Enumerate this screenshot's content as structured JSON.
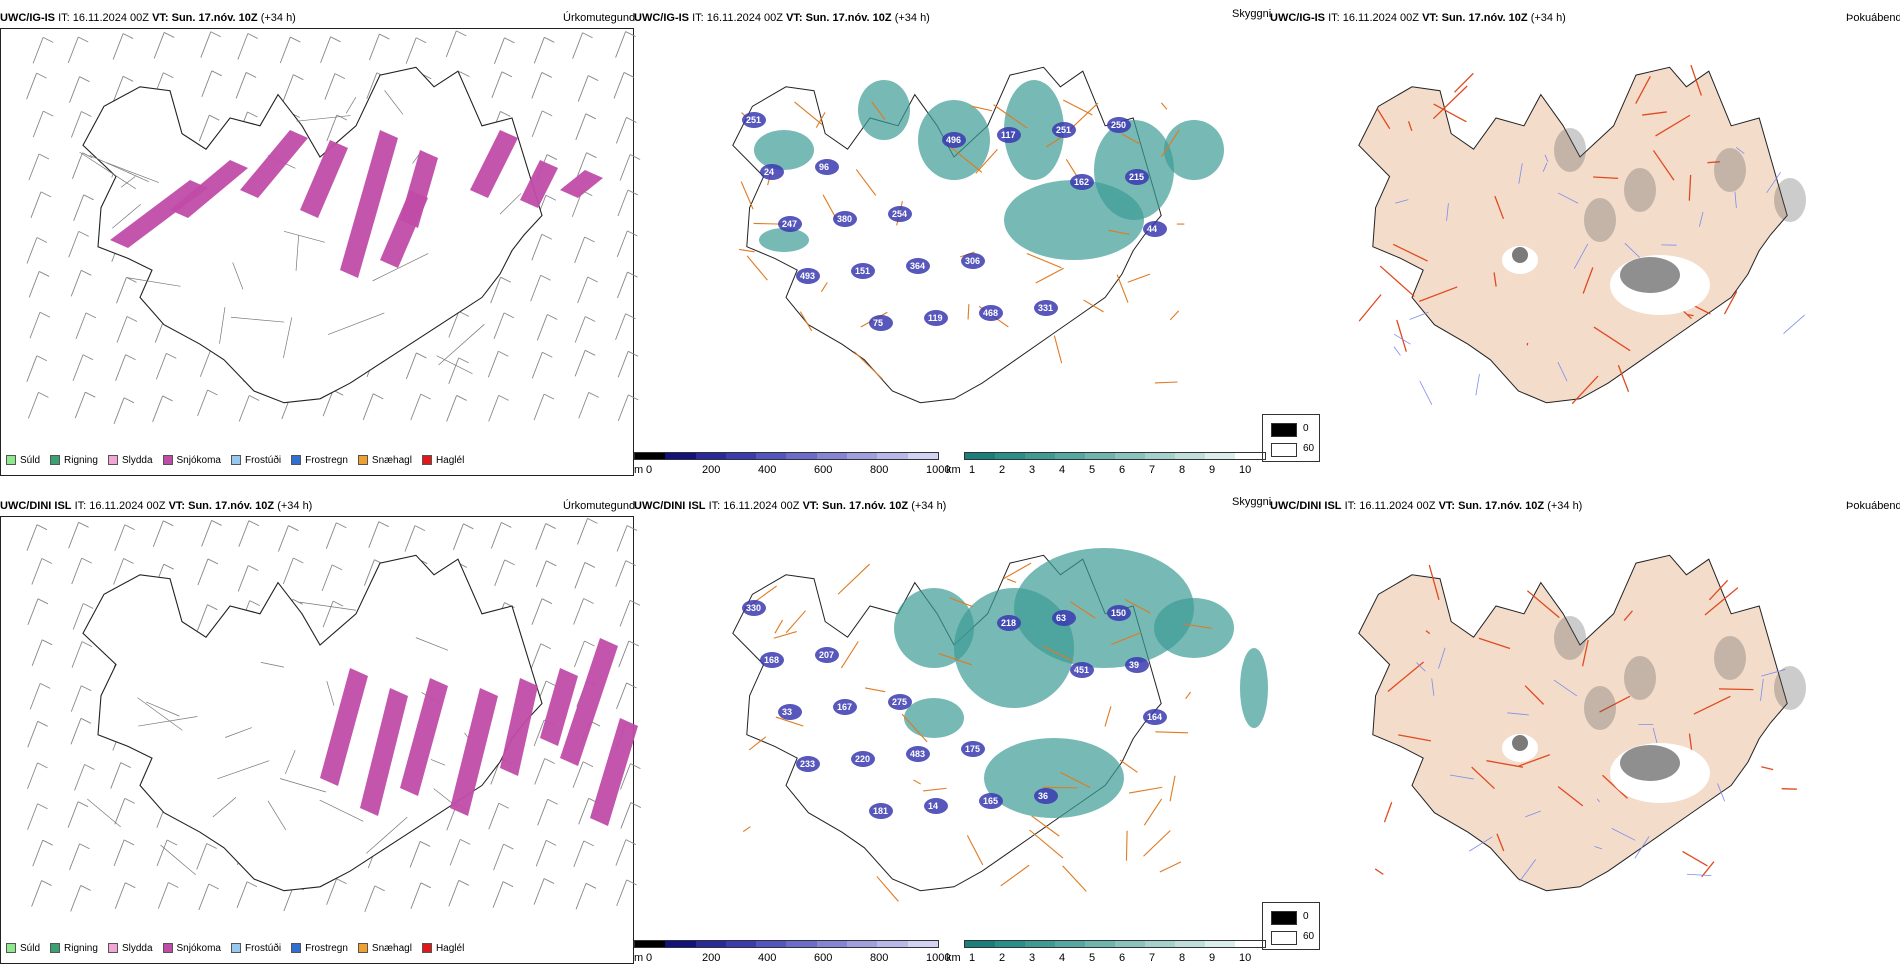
{
  "rows": [
    {
      "model": "UWC/IG-IS",
      "it_label": "IT:",
      "it_value": "16.11.2024 00Z",
      "vt_label": "VT:",
      "vt_value": "Sun. 17.nóv. 10Z",
      "lead": "(+34 h)",
      "panels": [
        "Úrkomutegund",
        "Skyggni",
        "Þokuábendi"
      ],
      "visibility_labels": [
        "251",
        "96",
        "254",
        "306",
        "331",
        "250",
        "24",
        "380",
        "364",
        "468",
        "251",
        "215",
        "247",
        "151",
        "119",
        "117",
        "162",
        "44",
        "493",
        "75",
        "496"
      ],
      "ceiling_labels": []
    },
    {
      "model": "UWC/DINI ISL",
      "it_label": "IT:",
      "it_value": "16.11.2024 00Z",
      "vt_label": "VT:",
      "vt_value": "Sun. 17.nóv. 10Z",
      "lead": "(+34 h)",
      "panels": [
        "Úrkomutegund",
        "Skyggni",
        "Þokuábendi"
      ],
      "visibility_labels": [
        "330",
        "207",
        "275",
        "175",
        "36",
        "150",
        "168",
        "167",
        "483",
        "165",
        "63",
        "39",
        "33",
        "220",
        "14",
        "218",
        "451",
        "164",
        "233",
        "181"
      ],
      "ceiling_labels": []
    }
  ],
  "precip_legend": [
    {
      "label": "Súld",
      "color": "#8ee68e"
    },
    {
      "label": "Rigning",
      "color": "#3aa070"
    },
    {
      "label": "Slydda",
      "color": "#f2a6d6"
    },
    {
      "label": "Snjókoma",
      "color": "#c04ca8"
    },
    {
      "label": "Frostúði",
      "color": "#96c8f0"
    },
    {
      "label": "Frostregn",
      "color": "#2f6fd0"
    },
    {
      "label": "Snæhagl",
      "color": "#f0a030"
    },
    {
      "label": "Haglél",
      "color": "#e01818"
    }
  ],
  "cloud_base_scale": {
    "unit": "m",
    "ticks": [
      "0",
      "200",
      "400",
      "600",
      "800",
      "1000"
    ],
    "colors": [
      "#000000",
      "#12127a",
      "#2a2a9a",
      "#3c3cae",
      "#5454c0",
      "#6b6bcc",
      "#8585d6",
      "#a0a0e0",
      "#b8b8ea",
      "#d2d2f2"
    ]
  },
  "visibility_scale": {
    "unit": "km",
    "ticks": [
      "1",
      "2",
      "3",
      "4",
      "5",
      "6",
      "7",
      "8",
      "9",
      "10"
    ],
    "colors": [
      "#1a7f7a",
      "#2a8f88",
      "#3d9b94",
      "#55a8a1",
      "#6fb5ae",
      "#8ac3bd",
      "#a5d1cc",
      "#c0dfdb",
      "#dbeeeb",
      "#ffffff"
    ]
  },
  "fog_scale": {
    "values": [
      "0",
      "60"
    ],
    "colors": [
      "#000000",
      "#ffffff"
    ]
  },
  "map_colors": {
    "snow": "#c04ca8",
    "teal": "#3d9b94",
    "low_cloud": "#3a3ab0",
    "road_orange": "#e07a20",
    "land_fog": "#f4dccb",
    "road_red": "#e04a20",
    "river": "#7a8cf0"
  }
}
